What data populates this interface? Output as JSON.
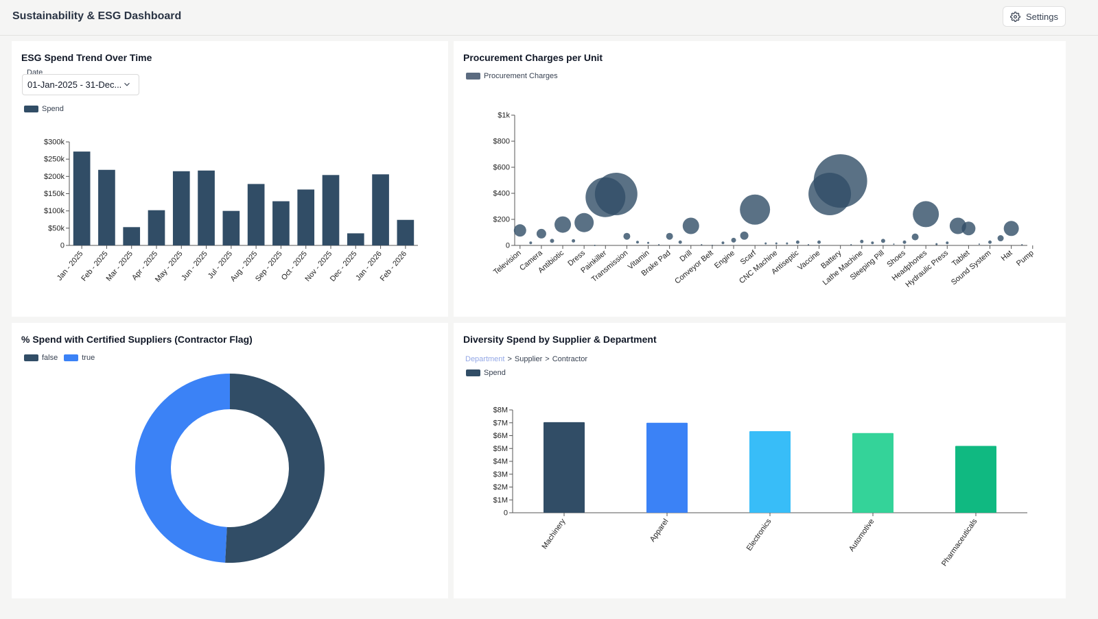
{
  "header": {
    "title": "Sustainability & ESG Dashboard",
    "settings_label": "Settings"
  },
  "spend_trend": {
    "title": "ESG Spend Trend Over Time",
    "date_label": "Date",
    "date_value": "01-Jan-2025 - 31-Dec...",
    "legend": "Spend"
  },
  "procurement": {
    "title": "Procurement Charges per Unit",
    "legend": "Procurement Charges"
  },
  "certified": {
    "title": "% Spend with Certified Suppliers (Contractor Flag)"
  },
  "diversity": {
    "title": "Diversity Spend by Supplier & Department",
    "breadcrumb": [
      "Department",
      "Supplier",
      "Contractor"
    ],
    "breadcrumb_sep": ">",
    "legend": "Spend"
  },
  "colors": {
    "navy": "#314d66",
    "blue": "#3b82f6",
    "sky": "#38bdf8",
    "mint": "#34d399",
    "green": "#10b981"
  },
  "chart_data": [
    {
      "id": "spend-trend",
      "type": "bar",
      "categories": [
        "Jan - 2025",
        "Feb - 2025",
        "Mar - 2025",
        "Apr - 2025",
        "May - 2025",
        "Jun - 2025",
        "Jul - 2025",
        "Aug - 2025",
        "Sep - 2025",
        "Oct - 2025",
        "Nov - 2025",
        "Dec - 2025",
        "Jan - 2026",
        "Feb - 2026"
      ],
      "series": [
        {
          "name": "Spend",
          "values": [
            272000,
            219000,
            53000,
            102000,
            215000,
            217000,
            100000,
            178000,
            128000,
            162000,
            204000,
            35000,
            206000,
            74000
          ]
        }
      ],
      "ylim": [
        0,
        300000
      ],
      "yticks": [
        0,
        50000,
        100000,
        150000,
        200000,
        250000,
        300000
      ],
      "ytick_labels": [
        "0",
        "$50k",
        "$100k",
        "$150k",
        "$200k",
        "$250k",
        "$300k"
      ],
      "legend_position": "top-left",
      "grid": false
    },
    {
      "id": "procurement",
      "type": "scatter",
      "categories": [
        "Television",
        "Camera",
        "Antibiotic",
        "Dress",
        "Painkiller",
        "Transmission",
        "Vitamin",
        "Brake Pad",
        "Drill",
        "Conveyor Belt",
        "Engine",
        "Scarf",
        "CNC Machine",
        "Antiseptic",
        "Vaccine",
        "Battery",
        "Lathe Machine",
        "Sleeping Pill",
        "Shoes",
        "Headphones",
        "Hydraulic Press",
        "Tablet",
        "Sound System",
        "Hat",
        "Pump"
      ],
      "tick_every": 2,
      "series": [
        {
          "name": "Procurement Charges",
          "points": [
            {
              "x": 0,
              "y": 115,
              "r": 9
            },
            {
              "x": 1,
              "y": 20,
              "r": 2
            },
            {
              "x": 2,
              "y": 90,
              "r": 7
            },
            {
              "x": 3,
              "y": 35,
              "r": 3
            },
            {
              "x": 4,
              "y": 160,
              "r": 12
            },
            {
              "x": 5,
              "y": 35,
              "r": 2.5
            },
            {
              "x": 6,
              "y": 175,
              "r": 14
            },
            {
              "x": 7,
              "y": 0,
              "r": 1
            },
            {
              "x": 8,
              "y": 370,
              "r": 29
            },
            {
              "x": 9,
              "y": 395,
              "r": 31
            },
            {
              "x": 10,
              "y": 70,
              "r": 5
            },
            {
              "x": 11,
              "y": 25,
              "r": 2
            },
            {
              "x": 12,
              "y": 20,
              "r": 1.5
            },
            {
              "x": 13,
              "y": 5,
              "r": 1
            },
            {
              "x": 14,
              "y": 70,
              "r": 5
            },
            {
              "x": 15,
              "y": 25,
              "r": 2.5
            },
            {
              "x": 16,
              "y": 150,
              "r": 12
            },
            {
              "x": 17,
              "y": 5,
              "r": 1
            },
            {
              "x": 18,
              "y": 0,
              "r": 1
            },
            {
              "x": 19,
              "y": 20,
              "r": 2
            },
            {
              "x": 20,
              "y": 40,
              "r": 3.5
            },
            {
              "x": 21,
              "y": 75,
              "r": 6
            },
            {
              "x": 22,
              "y": 275,
              "r": 22
            },
            {
              "x": 23,
              "y": 15,
              "r": 1.5
            },
            {
              "x": 24,
              "y": 15,
              "r": 1.5
            },
            {
              "x": 25,
              "y": 15,
              "r": 1.5
            },
            {
              "x": 26,
              "y": 25,
              "r": 2.5
            },
            {
              "x": 27,
              "y": 5,
              "r": 1
            },
            {
              "x": 28,
              "y": 25,
              "r": 2.5
            },
            {
              "x": 29,
              "y": 395,
              "r": 31
            },
            {
              "x": 30,
              "y": 495,
              "r": 39
            },
            {
              "x": 31,
              "y": 5,
              "r": 1
            },
            {
              "x": 32,
              "y": 30,
              "r": 2.5
            },
            {
              "x": 33,
              "y": 20,
              "r": 2
            },
            {
              "x": 34,
              "y": 35,
              "r": 3
            },
            {
              "x": 35,
              "y": 10,
              "r": 1
            },
            {
              "x": 36,
              "y": 25,
              "r": 2.5
            },
            {
              "x": 37,
              "y": 65,
              "r": 5
            },
            {
              "x": 38,
              "y": 240,
              "r": 19
            },
            {
              "x": 39,
              "y": 10,
              "r": 1.5
            },
            {
              "x": 40,
              "y": 20,
              "r": 2
            },
            {
              "x": 41,
              "y": 150,
              "r": 12
            },
            {
              "x": 42,
              "y": 130,
              "r": 10
            },
            {
              "x": 43,
              "y": 10,
              "r": 1
            },
            {
              "x": 44,
              "y": 25,
              "r": 2.5
            },
            {
              "x": 45,
              "y": 55,
              "r": 4.5
            },
            {
              "x": 46,
              "y": 130,
              "r": 11
            },
            {
              "x": 47,
              "y": 5,
              "r": 1
            }
          ]
        }
      ],
      "ylim": [
        0,
        1000
      ],
      "yticks": [
        0,
        200,
        400,
        600,
        800,
        1000
      ],
      "ytick_labels": [
        "0",
        "$200",
        "$400",
        "$600",
        "$800",
        "$1k"
      ],
      "legend_position": "top-left",
      "grid": false
    },
    {
      "id": "certified",
      "type": "pie",
      "donut": true,
      "slices": [
        {
          "label": "false",
          "value": 50.8,
          "color": "#314d66"
        },
        {
          "label": "true",
          "value": 49.2,
          "color": "#3b82f6"
        }
      ],
      "legend_position": "top-left"
    },
    {
      "id": "diversity",
      "type": "bar",
      "categories": [
        "Machinery",
        "Apparel",
        "Electronics",
        "Automotive",
        "Pharmaceuticals"
      ],
      "series": [
        {
          "name": "Spend",
          "values": [
            7050000,
            7000000,
            6350000,
            6200000,
            5200000
          ]
        }
      ],
      "bar_colors": [
        "#314d66",
        "#3b82f6",
        "#38bdf8",
        "#34d399",
        "#10b981"
      ],
      "ylim": [
        0,
        8000000
      ],
      "yticks": [
        0,
        1000000,
        2000000,
        3000000,
        4000000,
        5000000,
        6000000,
        7000000,
        8000000
      ],
      "ytick_labels": [
        "0",
        "$1M",
        "$2M",
        "$3M",
        "$4M",
        "$5M",
        "$6M",
        "$7M",
        "$8M"
      ],
      "legend_position": "top-left",
      "grid": false
    }
  ]
}
